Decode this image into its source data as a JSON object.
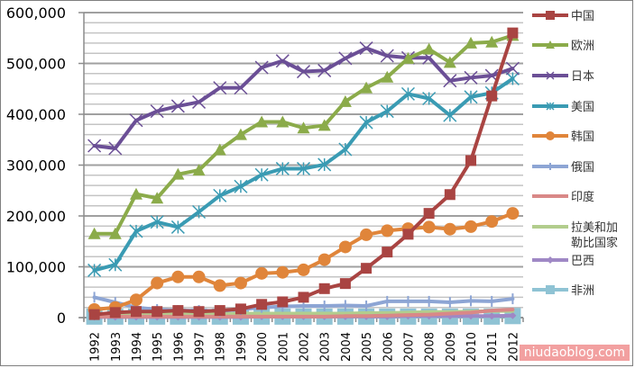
{
  "watermark": "niudaoblog.com",
  "chart_data": {
    "type": "line",
    "title": "",
    "xlabel": "",
    "ylabel": "",
    "ylim": [
      0,
      600000
    ],
    "yticks": [
      0,
      100000,
      200000,
      300000,
      400000,
      500000,
      600000
    ],
    "ytick_labels": [
      "0",
      "100,000",
      "200,000",
      "300,000",
      "400,000",
      "500,000",
      "600,000"
    ],
    "grid": true,
    "legend_position": "right",
    "categories": [
      "1992",
      "1993",
      "1994",
      "1995",
      "1996",
      "1997",
      "1998",
      "1999",
      "2000",
      "2001",
      "2002",
      "2003",
      "2004",
      "2005",
      "2006",
      "2007",
      "2008",
      "2009",
      "2010",
      "2011",
      "2012"
    ],
    "series": [
      {
        "name": "中国",
        "color": "#a94442",
        "marker": "square",
        "values": [
          6000,
          10000,
          12000,
          12000,
          14000,
          12000,
          14000,
          17000,
          26000,
          31000,
          40000,
          57000,
          67000,
          97000,
          129000,
          164000,
          205000,
          242000,
          309000,
          436000,
          560000
        ]
      },
      {
        "name": "欧洲",
        "color": "#8bab4a",
        "marker": "triangle",
        "values": [
          165000,
          165000,
          243000,
          235000,
          282000,
          290000,
          330000,
          360000,
          385000,
          385000,
          373000,
          378000,
          425000,
          452000,
          473000,
          510000,
          528000,
          502000,
          540000,
          542000,
          555000
        ]
      },
      {
        "name": "日本",
        "color": "#6b4f96",
        "marker": "x",
        "values": [
          338000,
          333000,
          388000,
          406000,
          416000,
          424000,
          452000,
          452000,
          492000,
          505000,
          484000,
          486000,
          510000,
          530000,
          515000,
          511000,
          511000,
          466000,
          472000,
          476000,
          490000
        ]
      },
      {
        "name": "美国",
        "color": "#3a9bb3",
        "marker": "star",
        "values": [
          93000,
          104000,
          170000,
          188000,
          178000,
          208000,
          240000,
          258000,
          281000,
          293000,
          293000,
          301000,
          331000,
          384000,
          406000,
          440000,
          431000,
          398000,
          434000,
          442000,
          470000
        ]
      },
      {
        "name": "韩国",
        "color": "#e0853a",
        "marker": "circle",
        "values": [
          16000,
          20000,
          35000,
          68000,
          80000,
          80000,
          63000,
          68000,
          87000,
          89000,
          94000,
          114000,
          139000,
          163000,
          171000,
          175000,
          178000,
          174000,
          179000,
          189000,
          205000
        ]
      },
      {
        "name": "俄国",
        "color": "#8da5d4",
        "marker": "dash",
        "values": [
          40000,
          30000,
          20000,
          16000,
          14000,
          14000,
          13000,
          16000,
          20000,
          22000,
          23000,
          23000,
          24000,
          23000,
          32000,
          32000,
          32000,
          30000,
          33000,
          32000,
          37000
        ]
      },
      {
        "name": "印度",
        "color": "#d98887",
        "marker": "none",
        "values": [
          2000,
          2000,
          2000,
          2000,
          2000,
          2000,
          2000,
          2000,
          2000,
          2000,
          2000,
          2000,
          3000,
          3000,
          4000,
          5000,
          6000,
          8000,
          10000,
          14000,
          16000
        ]
      },
      {
        "name": "拉美和加勒比国家",
        "color": "#b2cd8d",
        "marker": "none",
        "values": [
          6000,
          6000,
          7000,
          7000,
          7000,
          7000,
          7000,
          8000,
          8000,
          8000,
          8000,
          8000,
          8000,
          9000,
          9000,
          10000,
          11000,
          11000,
          12000,
          13000,
          13000
        ]
      },
      {
        "name": "巴西",
        "color": "#9f88c5",
        "marker": "diamond",
        "values": [
          1000,
          1000,
          1000,
          1000,
          1000,
          1000,
          1000,
          1000,
          2000,
          2000,
          2000,
          2000,
          2000,
          2000,
          2000,
          3000,
          3000,
          3000,
          3000,
          3000,
          4000
        ]
      },
      {
        "name": "非洲",
        "color": "#8fc3d4",
        "marker": "square",
        "values": [
          2000,
          2000,
          2000,
          2000,
          2000,
          2000,
          2000,
          2000,
          2000,
          2000,
          2000,
          2000,
          2000,
          2000,
          2000,
          2000,
          2000,
          2000,
          2000,
          2000,
          3000
        ]
      }
    ]
  }
}
